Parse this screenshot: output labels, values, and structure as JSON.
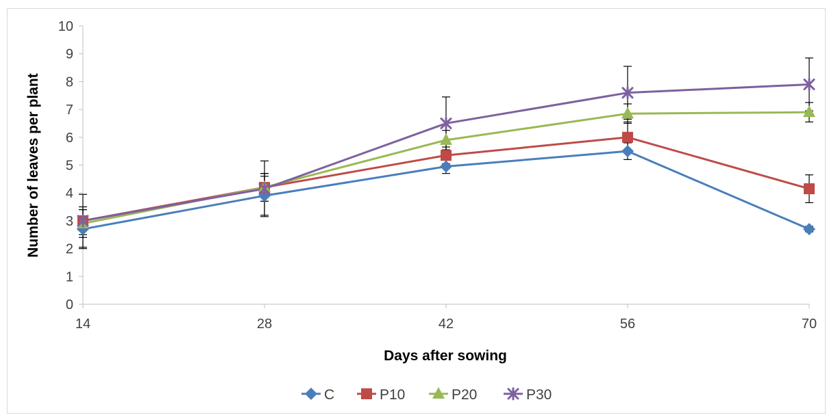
{
  "chart_data": {
    "type": "line",
    "title": "",
    "xlabel": "Days after sowing",
    "ylabel": "Number of leaves per plant",
    "x": [
      14,
      28,
      42,
      56,
      70
    ],
    "xticks": [
      "14",
      "28",
      "42",
      "56",
      "70"
    ],
    "yticks": [
      "0",
      "1",
      "2",
      "3",
      "4",
      "5",
      "6",
      "7",
      "8",
      "9",
      "10"
    ],
    "ylim": [
      0,
      10
    ],
    "grid": false,
    "legend_position": "bottom",
    "series": [
      {
        "name": "C",
        "color": "#4a7ebb",
        "marker": "diamond",
        "values": [
          2.7,
          3.9,
          4.95,
          5.5,
          2.7
        ],
        "errors": [
          0.7,
          0.7,
          0.25,
          0.3,
          0.1
        ]
      },
      {
        "name": "P10",
        "color": "#be4b48",
        "marker": "square",
        "values": [
          3.0,
          4.2,
          5.35,
          6.0,
          4.15
        ],
        "errors": [
          0.5,
          0.5,
          0.3,
          0.55,
          0.5
        ]
      },
      {
        "name": "P20",
        "color": "#98b954",
        "marker": "triangle",
        "values": [
          2.9,
          4.2,
          5.9,
          6.85,
          6.9
        ],
        "errors": [
          0.5,
          0.5,
          0.35,
          0.35,
          0.35
        ]
      },
      {
        "name": "P30",
        "color": "#7d60a0",
        "marker": "x",
        "values": [
          3.0,
          4.15,
          6.5,
          7.6,
          7.9
        ],
        "errors": [
          0.95,
          1.0,
          0.95,
          0.95,
          0.95
        ]
      }
    ]
  }
}
